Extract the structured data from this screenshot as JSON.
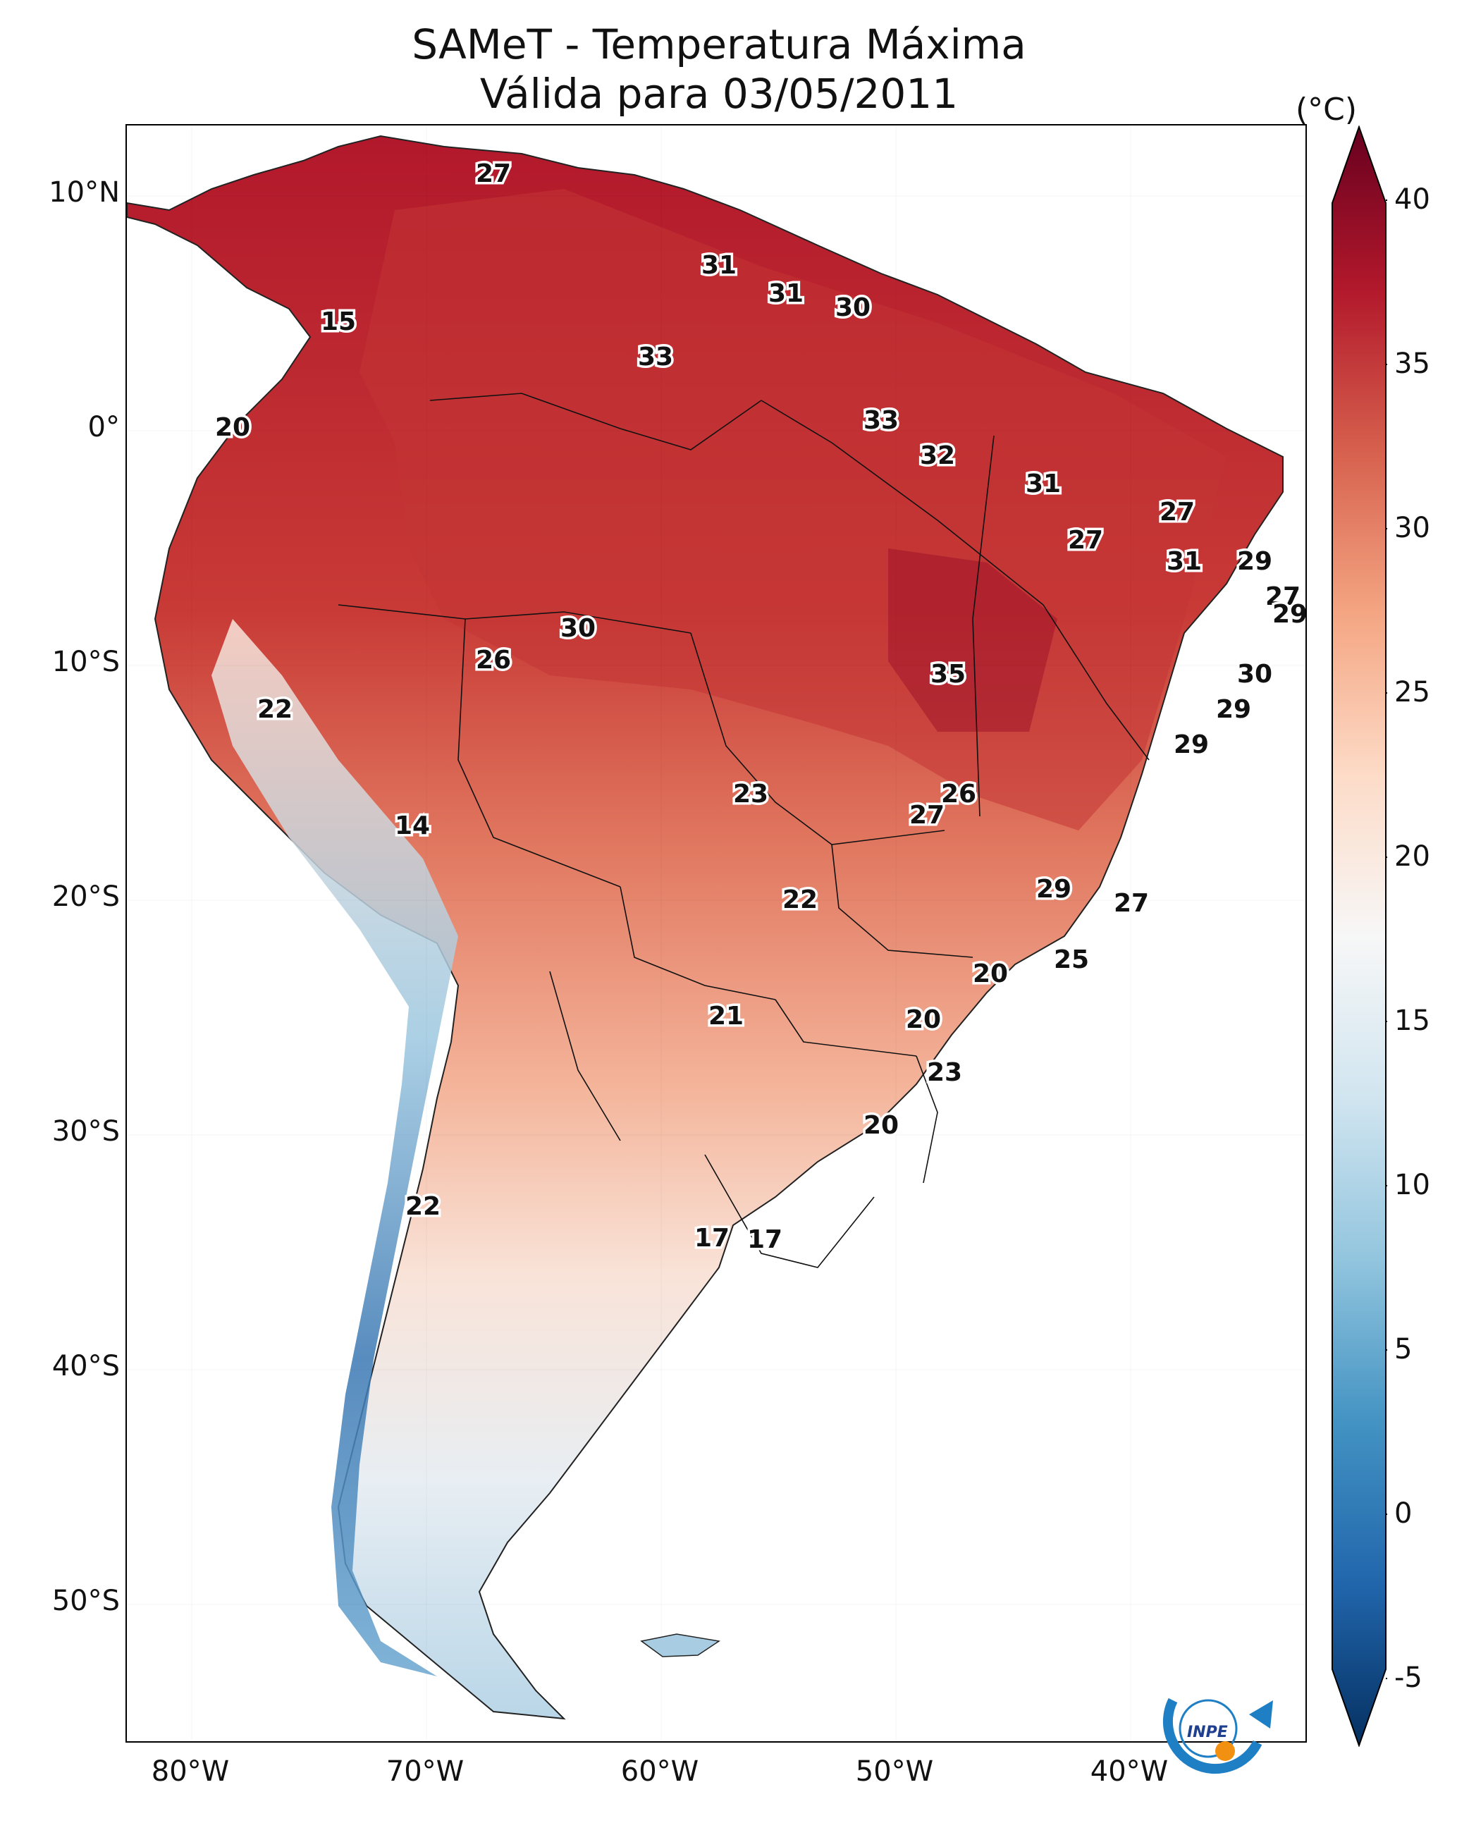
{
  "title": {
    "line1": "SAMeT - Temperatura Máxima",
    "line2": "Válida para 03/05/2011"
  },
  "colorbar": {
    "unit": "(°C)",
    "ticks": [
      "40",
      "35",
      "30",
      "25",
      "20",
      "15",
      "10",
      "5",
      "0",
      "-5"
    ],
    "range": [
      -5,
      40
    ],
    "colors_low_to_high": [
      "#053061",
      "#2166ac",
      "#4393c3",
      "#92c5de",
      "#d1e5f0",
      "#f7f7f7",
      "#fddbc7",
      "#f4a582",
      "#d6604d",
      "#b2182b",
      "#67001f"
    ]
  },
  "axes": {
    "lat_labels": [
      "10°N",
      "0°",
      "10°S",
      "20°S",
      "30°S",
      "40°S",
      "50°S"
    ],
    "lon_labels": [
      "80°W",
      "70°W",
      "60°W",
      "50°W",
      "40°W"
    ]
  },
  "contour_labels": [
    "27",
    "31",
    "31",
    "30",
    "15",
    "33",
    "33",
    "20",
    "32",
    "31",
    "27",
    "27",
    "31",
    "29",
    "27",
    "29",
    "30",
    "26",
    "35",
    "29",
    "22",
    "30",
    "29",
    "23",
    "26",
    "27",
    "14",
    "29",
    "22",
    "27",
    "20",
    "25",
    "21",
    "20",
    "23",
    "20",
    "22",
    "17",
    "17"
  ],
  "logo": {
    "text": "INPE"
  }
}
